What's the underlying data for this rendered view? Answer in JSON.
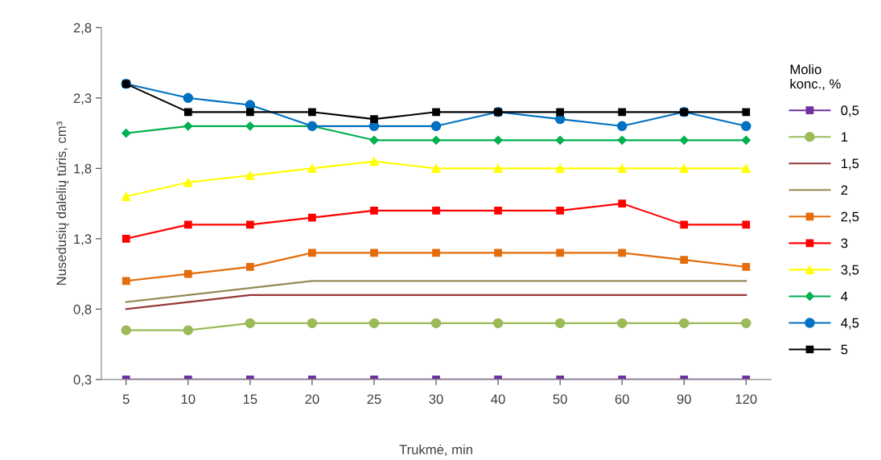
{
  "chart_data": {
    "type": "line",
    "ylabel": "Nusedusių dalelių tūris, cm³",
    "xlabel": "Trukmė, min",
    "legend_title": "Molio\nkonc., %",
    "categories": [
      "5",
      "10",
      "15",
      "20",
      "25",
      "30",
      "40",
      "50",
      "60",
      "90",
      "120"
    ],
    "ylim": [
      0.3,
      2.8
    ],
    "yticks": [
      {
        "value": 0.3,
        "label": "0,3"
      },
      {
        "value": 0.8,
        "label": "0,8"
      },
      {
        "value": 1.3,
        "label": "1,3"
      },
      {
        "value": 1.8,
        "label": "1,8"
      },
      {
        "value": 2.3,
        "label": "2,3"
      },
      {
        "value": 2.8,
        "label": "2,8"
      }
    ],
    "grid": false,
    "legend": "right",
    "series": [
      {
        "name": "0,5",
        "color": "#7030a0",
        "marker": "square",
        "values": [
          0.3,
          0.3,
          0.3,
          0.3,
          0.3,
          0.3,
          0.3,
          0.3,
          0.3,
          0.3,
          0.3
        ]
      },
      {
        "name": "1",
        "color": "#9bbb59",
        "marker": "circle",
        "values": [
          0.65,
          0.65,
          0.7,
          0.7,
          0.7,
          0.7,
          0.7,
          0.7,
          0.7,
          0.7,
          0.7
        ]
      },
      {
        "name": "1,5",
        "color": "#953735",
        "marker": "none",
        "values": [
          0.8,
          0.85,
          0.9,
          0.9,
          0.9,
          0.9,
          0.9,
          0.9,
          0.9,
          0.9,
          0.9
        ]
      },
      {
        "name": "2",
        "color": "#948a54",
        "marker": "none",
        "values": [
          0.85,
          0.9,
          0.95,
          1.0,
          1.0,
          1.0,
          1.0,
          1.0,
          1.0,
          1.0,
          1.0
        ]
      },
      {
        "name": "2,5",
        "color": "#e46c0a",
        "marker": "square",
        "values": [
          1.0,
          1.05,
          1.1,
          1.2,
          1.2,
          1.2,
          1.2,
          1.2,
          1.2,
          1.15,
          1.1
        ]
      },
      {
        "name": "3",
        "color": "#ff0000",
        "marker": "square",
        "values": [
          1.3,
          1.4,
          1.4,
          1.45,
          1.5,
          1.5,
          1.5,
          1.5,
          1.55,
          1.4,
          1.4
        ]
      },
      {
        "name": "3,5",
        "color": "#ffff00",
        "marker": "triangle",
        "values": [
          1.6,
          1.7,
          1.75,
          1.8,
          1.85,
          1.8,
          1.8,
          1.8,
          1.8,
          1.8,
          1.8
        ]
      },
      {
        "name": "4",
        "color": "#00b050",
        "marker": "diamond",
        "values": [
          2.05,
          2.1,
          2.1,
          2.1,
          2.0,
          2.0,
          2.0,
          2.0,
          2.0,
          2.0,
          2.0
        ]
      },
      {
        "name": "4,5",
        "color": "#0070c0",
        "marker": "circle",
        "values": [
          2.4,
          2.3,
          2.25,
          2.1,
          2.1,
          2.1,
          2.2,
          2.15,
          2.1,
          2.2,
          2.1
        ]
      },
      {
        "name": "5",
        "color": "#000000",
        "marker": "square",
        "values": [
          2.4,
          2.2,
          2.2,
          2.2,
          2.15,
          2.2,
          2.2,
          2.2,
          2.2,
          2.2,
          2.2
        ]
      }
    ]
  }
}
